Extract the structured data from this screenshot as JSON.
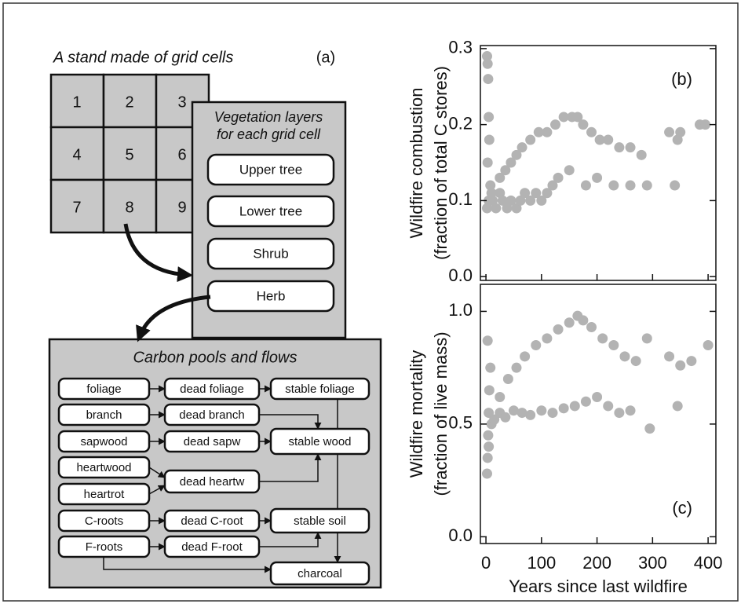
{
  "diagram": {
    "title": "A stand made of grid cells",
    "label": "(a)",
    "grid_cells": [
      "1",
      "2",
      "3",
      "4",
      "5",
      "6",
      "7",
      "8",
      "9"
    ],
    "vegetation": {
      "title_lines": [
        "Vegetation layers",
        "for each grid cell"
      ],
      "layers": [
        "Upper tree",
        "Lower tree",
        "Shrub",
        "Herb"
      ]
    },
    "carbon": {
      "title": "Carbon pools and flows",
      "pools": [
        "foliage",
        "branch",
        "sapwood",
        "heartwood",
        "heartrot",
        "C-roots",
        "F-roots",
        "dead foliage",
        "dead branch",
        "dead sapw",
        "dead heartw",
        "dead C-root",
        "dead F-root",
        "stable foliage",
        "stable wood",
        "stable soil",
        "charcoal"
      ]
    }
  },
  "chart_data": [
    {
      "type": "scatter",
      "panel_label": "(b)",
      "ylabel": [
        "Wildfire combustion",
        "(fraction of total C stores)"
      ],
      "color": "#b3b3b3",
      "xlim": [
        -10,
        414
      ],
      "ylim": [
        -0.005,
        0.304
      ],
      "yticks": [
        {
          "value": 0,
          "label": "0.0"
        },
        0.1,
        0.2,
        0.3
      ],
      "x": [
        2,
        3,
        4,
        5,
        6,
        3,
        8,
        10,
        5,
        2,
        12,
        18,
        25,
        30,
        38,
        45,
        55,
        62,
        70,
        80,
        90,
        100,
        110,
        120,
        130,
        25,
        35,
        45,
        55,
        65,
        80,
        95,
        110,
        125,
        140,
        155,
        165,
        175,
        190,
        205,
        220,
        240,
        260,
        280,
        150,
        180,
        200,
        230,
        260,
        290,
        330,
        345,
        350,
        385,
        395,
        340
      ],
      "y": [
        0.29,
        0.28,
        0.26,
        0.21,
        0.18,
        0.15,
        0.12,
        0.11,
        0.1,
        0.09,
        0.1,
        0.09,
        0.11,
        0.1,
        0.09,
        0.1,
        0.09,
        0.1,
        0.11,
        0.1,
        0.11,
        0.1,
        0.11,
        0.12,
        0.13,
        0.13,
        0.14,
        0.15,
        0.16,
        0.17,
        0.18,
        0.19,
        0.19,
        0.2,
        0.21,
        0.21,
        0.21,
        0.2,
        0.19,
        0.18,
        0.18,
        0.17,
        0.17,
        0.16,
        0.14,
        0.12,
        0.13,
        0.12,
        0.12,
        0.12,
        0.19,
        0.18,
        0.19,
        0.2,
        0.2,
        0.12
      ]
    },
    {
      "type": "scatter",
      "panel_label": "(c)",
      "ylabel": [
        "Wildfire mortality",
        "(fraction of live mass)"
      ],
      "xlabel": "Years since last wildfire",
      "color": "#b3b3b3",
      "xlim": [
        -10,
        414
      ],
      "ylim": [
        -0.03,
        1.12
      ],
      "xticks": [
        0,
        100,
        200,
        300,
        400
      ],
      "yticks": [
        {
          "value": 0,
          "label": "0.0"
        },
        0.5,
        {
          "value": 1,
          "label": "1.0"
        }
      ],
      "x": [
        2,
        3,
        4,
        5,
        6,
        8,
        3,
        10,
        5,
        15,
        25,
        35,
        50,
        65,
        80,
        100,
        120,
        140,
        160,
        180,
        200,
        25,
        40,
        55,
        70,
        90,
        110,
        130,
        150,
        165,
        175,
        190,
        210,
        230,
        250,
        270,
        290,
        220,
        240,
        260,
        295,
        345,
        330,
        350,
        370,
        400
      ],
      "y": [
        0.28,
        0.35,
        0.45,
        0.55,
        0.65,
        0.75,
        0.87,
        0.5,
        0.4,
        0.52,
        0.55,
        0.53,
        0.56,
        0.55,
        0.54,
        0.56,
        0.55,
        0.57,
        0.58,
        0.6,
        0.62,
        0.62,
        0.7,
        0.75,
        0.8,
        0.85,
        0.88,
        0.92,
        0.95,
        0.98,
        0.96,
        0.93,
        0.88,
        0.85,
        0.8,
        0.78,
        0.88,
        0.58,
        0.55,
        0.56,
        0.48,
        0.58,
        0.8,
        0.76,
        0.78,
        0.85
      ]
    }
  ]
}
